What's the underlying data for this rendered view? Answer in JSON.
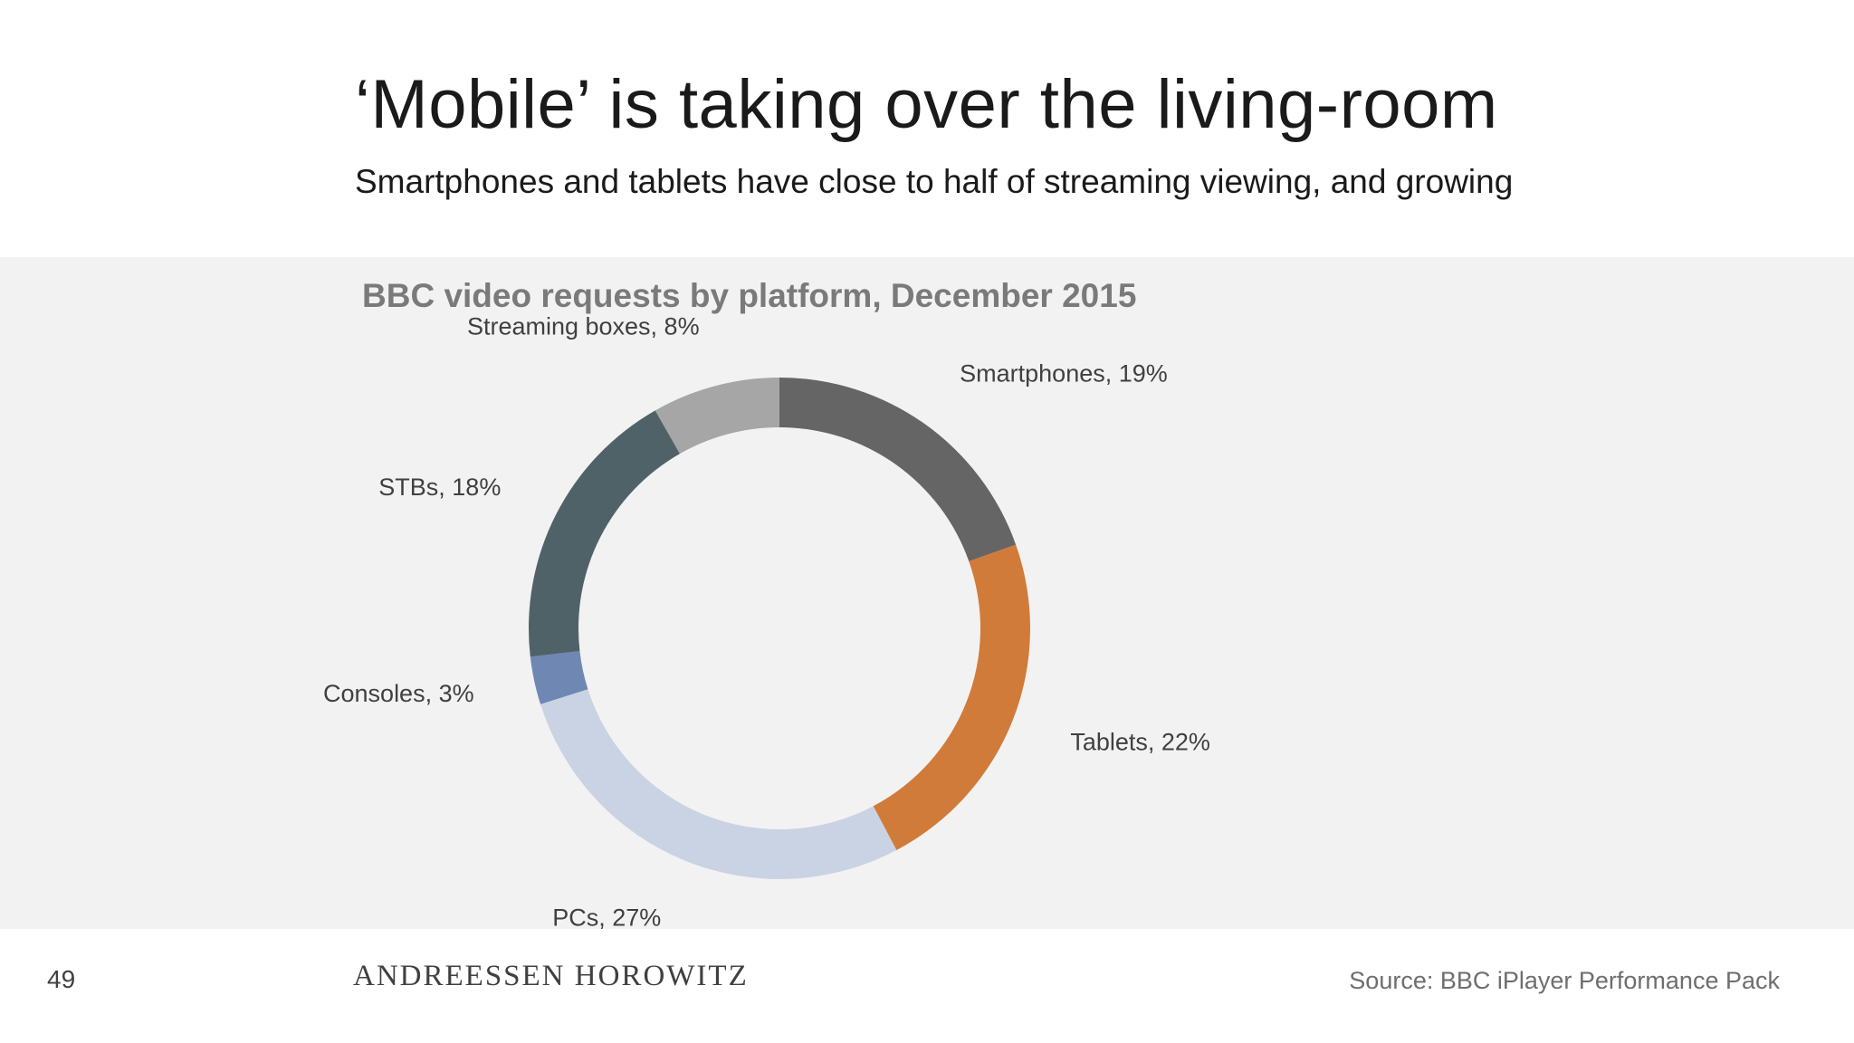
{
  "slide": {
    "title": "‘Mobile’ is taking over the living-room",
    "subtitle": "Smartphones and tablets have close to half of streaming viewing, and growing"
  },
  "chart_data": {
    "type": "pie",
    "variant": "donut",
    "title": "BBC video requests by platform, December 2015",
    "unit": "%",
    "slices": [
      {
        "label": "Smartphones, 19%",
        "value": 19,
        "color": "#656565"
      },
      {
        "label": "Tablets, 22%",
        "value": 22,
        "color": "#d17b3a"
      },
      {
        "label": "PCs, 27%",
        "value": 27,
        "color": "#cad3e3"
      },
      {
        "label": "Consoles, 3%",
        "value": 3,
        "color": "#6f88b3"
      },
      {
        "label": "STBs, 18%",
        "value": 18,
        "color": "#4f6268"
      },
      {
        "label": "Streaming boxes, 8%",
        "value": 8,
        "color": "#a6a6a6"
      }
    ],
    "start_angle": "top",
    "direction": "clockwise",
    "legend": "none"
  },
  "footer": {
    "page_number": "49",
    "logo_text": "ANDREESSEN HOROWITZ",
    "source": "Source: BBC iPlayer Performance Pack"
  }
}
